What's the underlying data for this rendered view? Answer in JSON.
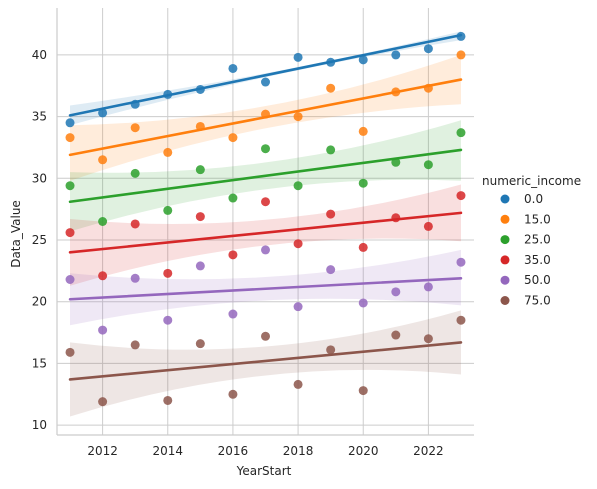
{
  "chart_data": {
    "type": "scatter",
    "xlabel": "YearStart",
    "ylabel": "Data_Value",
    "xlim": [
      2010.6,
      2023.4
    ],
    "ylim": [
      9.2,
      43.8
    ],
    "x_ticks": [
      2012,
      2014,
      2016,
      2018,
      2020,
      2022
    ],
    "y_ticks": [
      10,
      15,
      20,
      25,
      30,
      35,
      40
    ],
    "grid": true,
    "legend": {
      "title": "numeric_income",
      "placement": "right"
    },
    "x": [
      2011,
      2012,
      2013,
      2014,
      2015,
      2016,
      2017,
      2018,
      2019,
      2020,
      2021,
      2022,
      2023
    ],
    "series": [
      {
        "name": "0.0",
        "color": "#1f77b4",
        "values": [
          34.5,
          35.3,
          36.0,
          36.8,
          37.2,
          38.9,
          37.8,
          39.8,
          39.4,
          39.6,
          40.0,
          40.5,
          41.5
        ],
        "fit": [
          35.1,
          41.6
        ],
        "band": [
          [
            35.9,
            34.3
          ],
          [
            41.9,
            41.2
          ]
        ]
      },
      {
        "name": "15.0",
        "color": "#ff7f0e",
        "values": [
          33.3,
          31.5,
          34.1,
          32.1,
          34.2,
          33.3,
          35.2,
          35.0,
          37.3,
          33.8,
          37.0,
          37.3,
          40.0
        ],
        "fit": [
          31.9,
          38.0
        ],
        "band": [
          [
            34.3,
            29.8
          ],
          [
            40.0,
            36.0
          ]
        ]
      },
      {
        "name": "25.0",
        "color": "#2ca02c",
        "values": [
          29.4,
          26.5,
          30.4,
          27.4,
          30.7,
          28.4,
          32.4,
          29.4,
          32.3,
          29.6,
          31.3,
          31.1,
          33.7
        ],
        "fit": [
          28.1,
          32.3
        ],
        "band": [
          [
            30.5,
            25.7
          ],
          [
            34.7,
            29.8
          ]
        ]
      },
      {
        "name": "35.0",
        "color": "#d62728",
        "values": [
          25.6,
          22.1,
          26.3,
          22.3,
          26.9,
          23.8,
          28.1,
          24.7,
          27.1,
          24.4,
          26.8,
          26.1,
          28.6
        ],
        "fit": [
          24.0,
          27.2
        ],
        "band": [
          [
            26.7,
            21.3
          ],
          [
            29.5,
            24.9
          ]
        ]
      },
      {
        "name": "50.0",
        "color": "#9467bd",
        "values": [
          21.8,
          17.7,
          21.9,
          18.5,
          22.9,
          19.0,
          24.2,
          19.6,
          22.6,
          19.9,
          20.8,
          21.2,
          23.2
        ],
        "fit": [
          20.2,
          21.9
        ],
        "band": [
          [
            22.3,
            18.1
          ],
          [
            24.2,
            19.7
          ]
        ]
      },
      {
        "name": "75.0",
        "color": "#8c564b",
        "values": [
          15.9,
          11.9,
          16.5,
          12.0,
          16.6,
          12.5,
          17.2,
          13.3,
          16.1,
          12.8,
          17.3,
          17.0,
          18.5
        ],
        "fit": [
          13.7,
          16.7
        ],
        "band": [
          [
            16.7,
            10.7
          ],
          [
            19.3,
            14.1
          ]
        ]
      }
    ]
  }
}
